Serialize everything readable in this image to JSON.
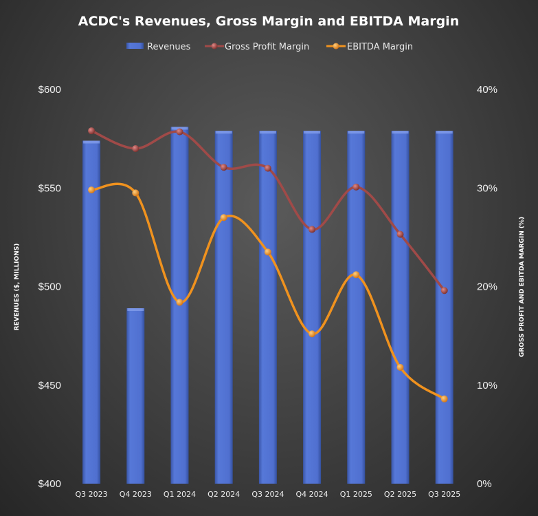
{
  "chart_data": {
    "type": "bar+line",
    "title": "ACDC's Revenues, Gross Margin and EBITDA Margin",
    "categories": [
      "Q3 2023",
      "Q4 2023",
      "Q1 2024",
      "Q2 2024",
      "Q3 2024",
      "Q4 2024",
      "Q1 2025",
      "Q2 2025",
      "Q3 2025"
    ],
    "ylabel": "REVENUES ($, MILLIONS)",
    "y2label": "GROSS PROFIT AND EBITDA MARGIN (%)",
    "ylim": [
      400,
      600
    ],
    "y2lim": [
      0,
      40
    ],
    "yticks": [
      "$400",
      "$450",
      "$500",
      "$550",
      "$600"
    ],
    "y2ticks": [
      "0%",
      "10%",
      "20%",
      "30%",
      "40%"
    ],
    "legend_position": "top",
    "series": [
      {
        "name": "Revenues",
        "type": "bar",
        "axis": "left",
        "color": "#4a6cc9",
        "values": [
          574,
          489,
          581,
          579,
          579,
          579,
          579,
          579,
          579
        ]
      },
      {
        "name": "Gross Profit Margin",
        "type": "line",
        "axis": "right",
        "color": "#a04a48",
        "values": [
          35.8,
          34.0,
          35.7,
          32.1,
          32.0,
          25.8,
          30.1,
          25.3,
          19.6
        ]
      },
      {
        "name": "EBITDA Margin",
        "type": "line",
        "axis": "right",
        "color": "#f0921e",
        "values": [
          29.8,
          29.5,
          18.4,
          27.0,
          23.5,
          15.2,
          21.2,
          11.8,
          8.6
        ]
      }
    ]
  }
}
